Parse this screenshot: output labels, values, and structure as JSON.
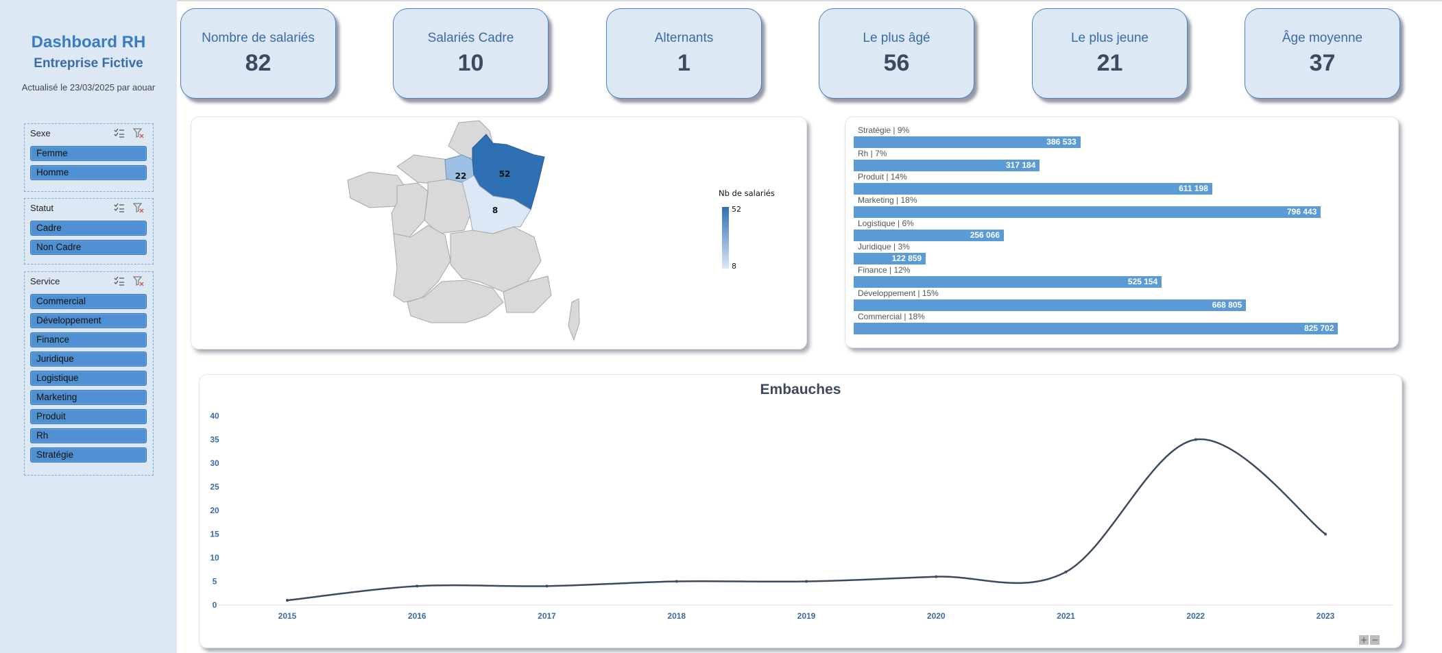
{
  "sidebar": {
    "title": "Dashboard RH",
    "company": "Entreprise Fictive",
    "updated": "Actualisé le 23/03/2025 par aouar",
    "slicers": [
      {
        "title": "Sexe",
        "items": [
          "Femme",
          "Homme"
        ]
      },
      {
        "title": "Statut",
        "items": [
          "Cadre",
          "Non Cadre"
        ]
      },
      {
        "title": "Service",
        "items": [
          "Commercial",
          "Développement",
          "Finance",
          "Juridique",
          "Logistique",
          "Marketing",
          "Produit",
          "Rh",
          "Stratégie"
        ]
      }
    ]
  },
  "kpis": [
    {
      "label": "Nombre de salariés",
      "value": "82"
    },
    {
      "label": "Salariés Cadre",
      "value": "10"
    },
    {
      "label": "Alternants",
      "value": "1"
    },
    {
      "label": "Le plus âgé",
      "value": "56"
    },
    {
      "label": "Le plus jeune",
      "value": "21"
    },
    {
      "label": "Âge moyenne",
      "value": "37"
    }
  ],
  "map": {
    "legend_title": "Nb de salariés",
    "legend_max": "52",
    "legend_min": "8",
    "regions": [
      {
        "name": "Grand Est",
        "value": "52",
        "color": "#2f6fb4"
      },
      {
        "name": "Île-de-France",
        "value": "22",
        "color": "#9dc0e4"
      },
      {
        "name": "Bourgogne-Franche-Comté",
        "value": "8",
        "color": "#dce8f6"
      }
    ]
  },
  "chart_data": [
    {
      "type": "bar",
      "categories": [
        "Stratégie  | 9%",
        "Rh  | 7%",
        "Produit  | 14%",
        "Marketing  | 18%",
        "Logistique  | 6%",
        "Juridique  | 3%",
        "Finance  | 12%",
        "Développement  | 15%",
        "Commercial  | 18%"
      ],
      "values": [
        386533,
        317184,
        611198,
        796443,
        256066,
        122859,
        525154,
        668805,
        825702
      ],
      "labels": [
        "386 533",
        "317 184",
        "611 198",
        "796 443",
        "256 066",
        "122 859",
        "525 154",
        "668 805",
        "825 702"
      ],
      "color": "#5b9bd5"
    },
    {
      "type": "line",
      "title": "Embauches",
      "x": [
        "2015",
        "2016",
        "2017",
        "2018",
        "2019",
        "2020",
        "2021",
        "2022",
        "2023"
      ],
      "y": [
        1,
        4,
        4,
        5,
        5,
        6,
        7,
        35,
        15
      ],
      "y_ticks": [
        "0",
        "5",
        "10",
        "15",
        "20",
        "25",
        "30",
        "35",
        "40"
      ],
      "ylim": [
        0,
        40
      ],
      "color": "#3c4a5f"
    }
  ],
  "zoom": {
    "plus": "+",
    "minus": "−"
  }
}
